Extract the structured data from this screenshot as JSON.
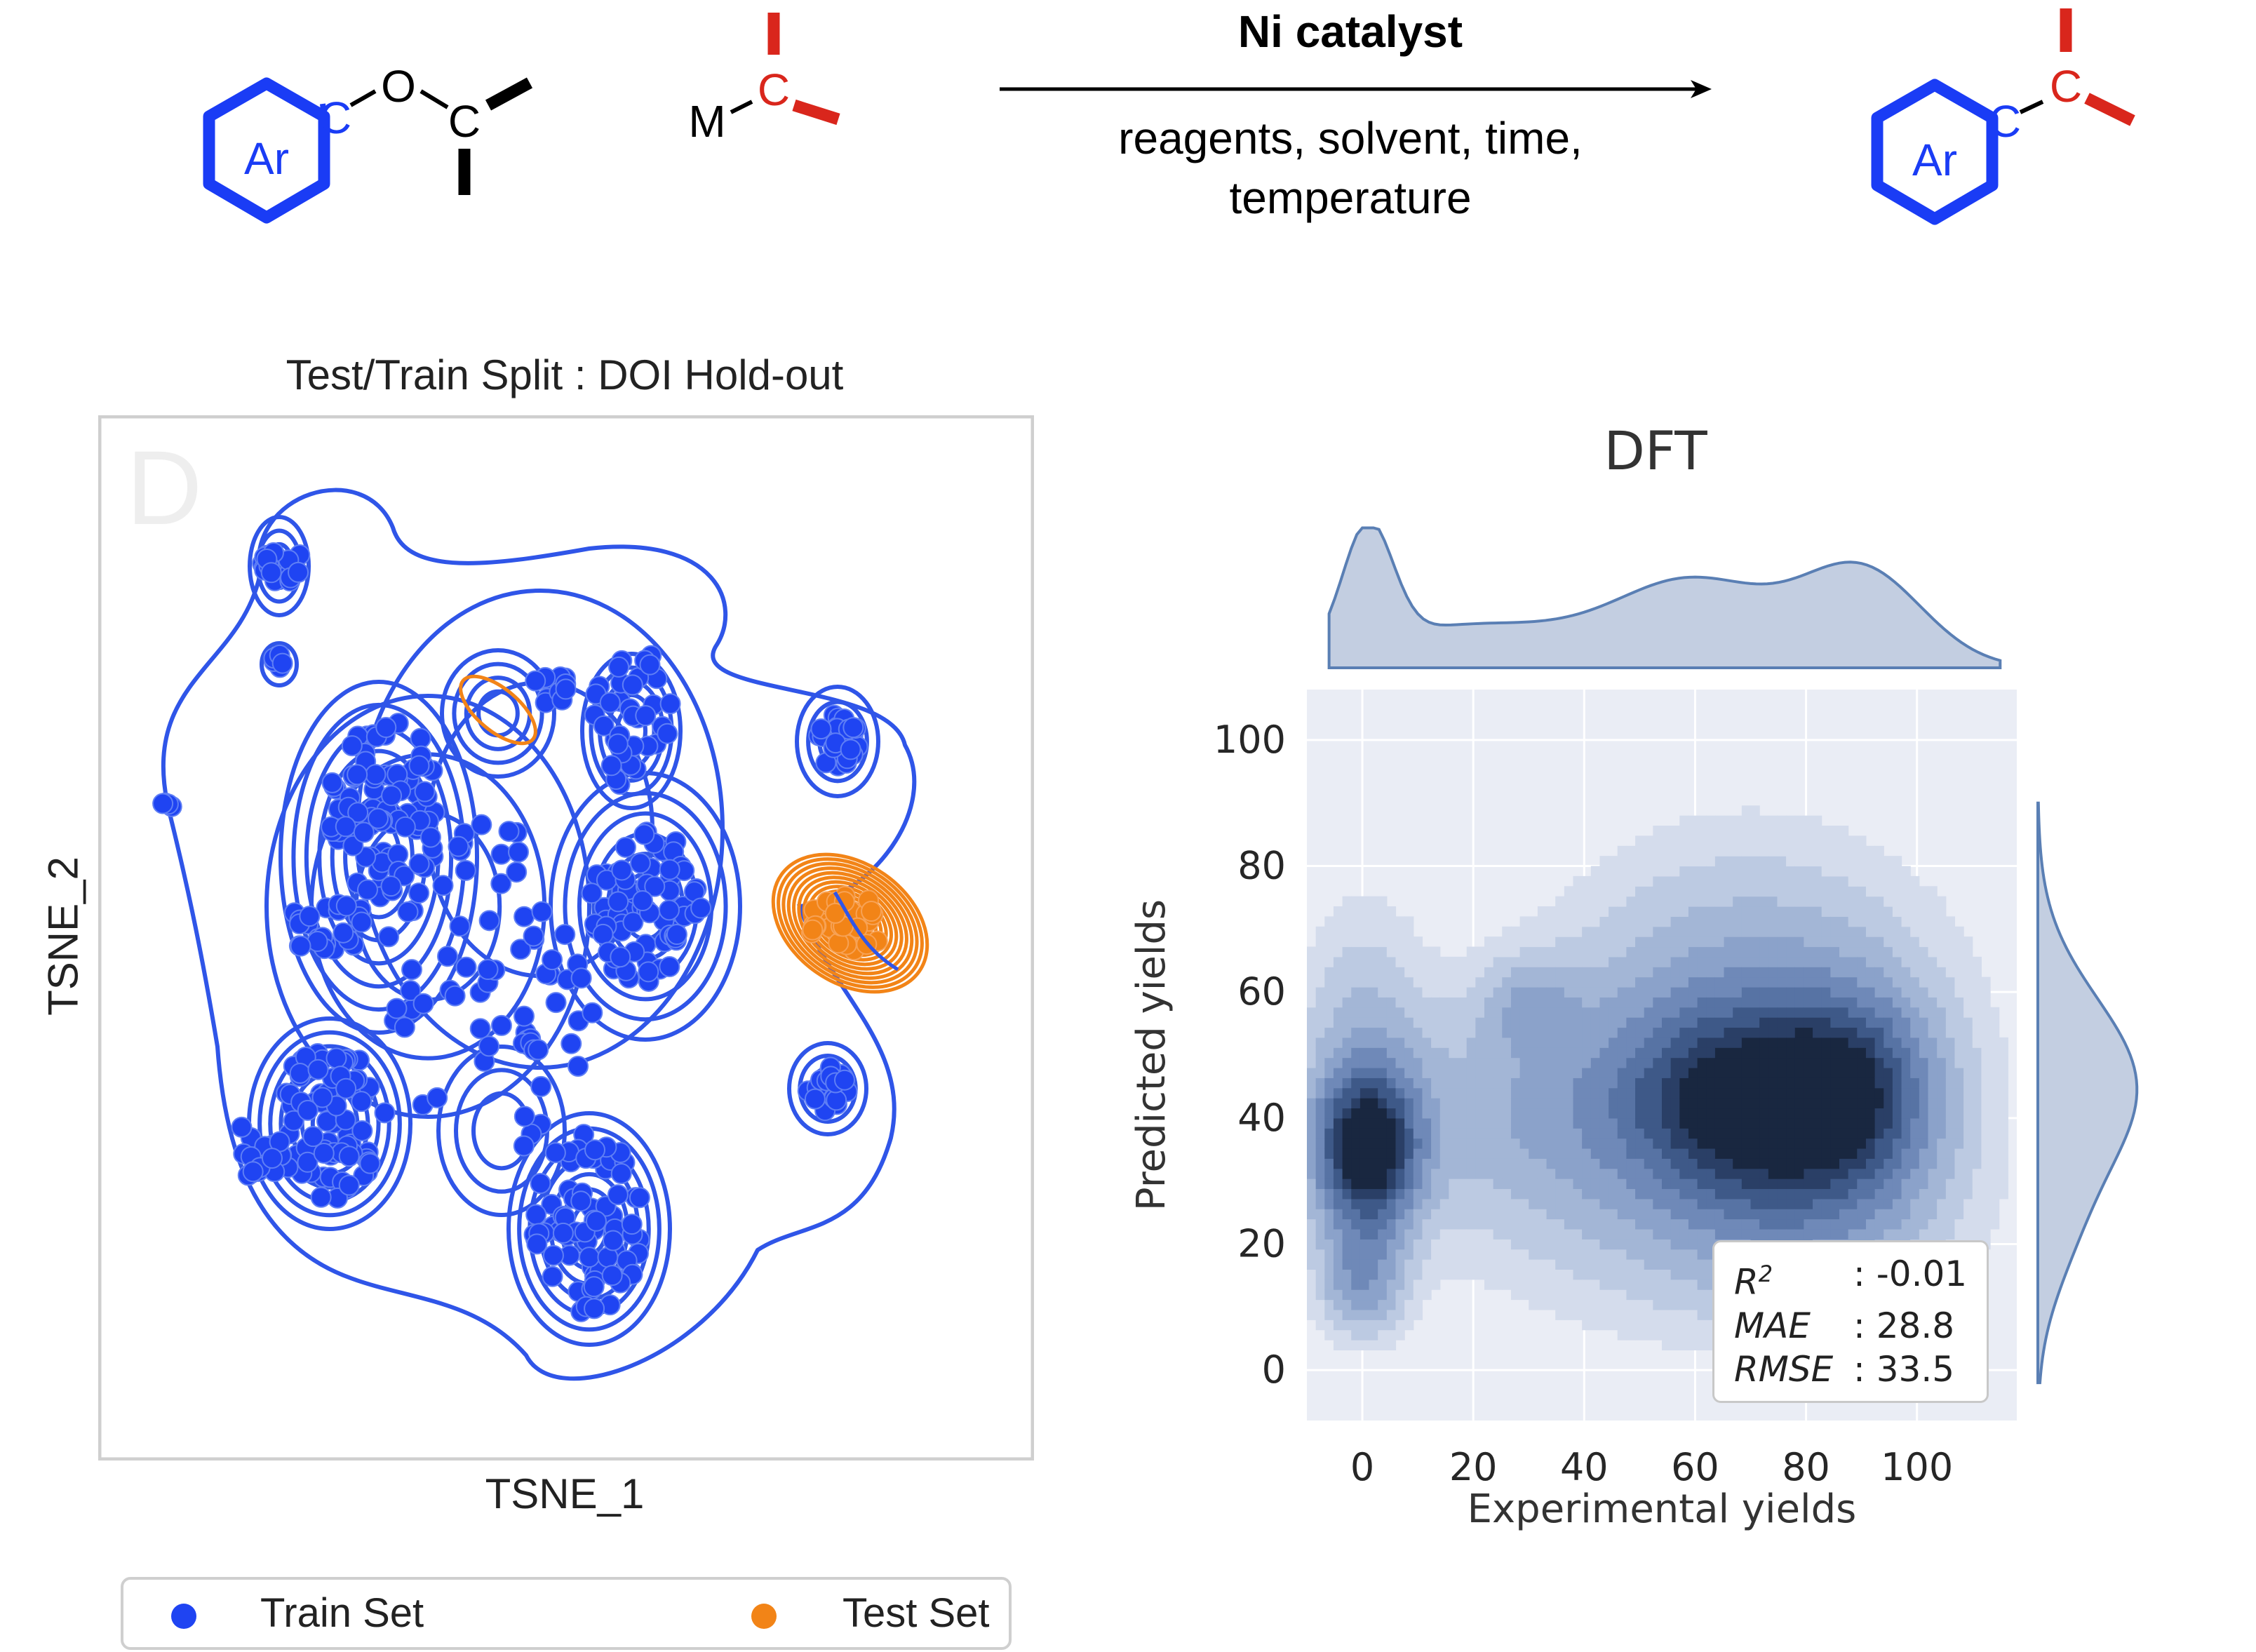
{
  "scheme": {
    "ar_label": "Ar",
    "c_label": "C",
    "o_label": "O",
    "m_label": "M",
    "catalyst": "Ni catalyst",
    "conditions_line1": "reagents, solvent, time,",
    "conditions_line2": "temperature",
    "colors": {
      "aryl": "#1a3cf5",
      "alkyl": "#d9261c",
      "bond": "#000000"
    }
  },
  "left_panel": {
    "title": "Test/Train Split : DOI Hold-out",
    "panel_letter": "D",
    "xlabel": "TSNE_1",
    "ylabel": "TSNE_2",
    "legend": [
      {
        "label": "Train Set",
        "color": "#1f44f2"
      },
      {
        "label": "Test Set",
        "color": "#f28417"
      }
    ]
  },
  "right_panel": {
    "title": "DFT",
    "xlabel": "Experimental yields",
    "ylabel": "Predicted yields",
    "xticks": [
      "0",
      "20",
      "40",
      "60",
      "80",
      "100"
    ],
    "yticks": [
      "0",
      "20",
      "40",
      "60",
      "80",
      "100"
    ],
    "stats": [
      {
        "key": "R",
        "sup": "2",
        "value": ": -0.01"
      },
      {
        "key": "MAE",
        "sup": "",
        "value": ": 28.8"
      },
      {
        "key": "RMSE",
        "sup": "",
        "value": ": 33.5"
      }
    ]
  },
  "chart_data": [
    {
      "type": "scatter",
      "title": "Test/Train Split : DOI Hold-out",
      "xlabel": "TSNE_1",
      "ylabel": "TSNE_2",
      "legend_position": "bottom",
      "series": [
        {
          "name": "Train Set",
          "color": "#1f44f2",
          "clusters": [
            "upper-left",
            "left",
            "center-top",
            "center",
            "lower-left",
            "lower-center",
            "right-small-top",
            "right-small-bottom",
            "far-left"
          ]
        },
        {
          "name": "Test Set",
          "color": "#f28417",
          "clusters": [
            "right-middle",
            "top-center-small"
          ]
        }
      ]
    },
    {
      "type": "heatmap",
      "title": "DFT",
      "xlabel": "Experimental yields",
      "ylabel": "Predicted yields",
      "xlim": [
        -10,
        118
      ],
      "ylim": [
        -8,
        108
      ],
      "density_modes": [
        {
          "x": 1,
          "y": 35,
          "weight": 1.0
        },
        {
          "x": 70,
          "y": 43,
          "weight": 0.8
        },
        {
          "x": 88,
          "y": 44,
          "weight": 0.7
        },
        {
          "x": 0,
          "y": 15,
          "weight": 0.3
        }
      ],
      "marginal_x_peaks": [
        2,
        60,
        90
      ],
      "marginal_y_peak": 45,
      "stats": {
        "R2": -0.01,
        "MAE": 28.8,
        "RMSE": 33.5
      },
      "colormap": "Blues"
    }
  ]
}
